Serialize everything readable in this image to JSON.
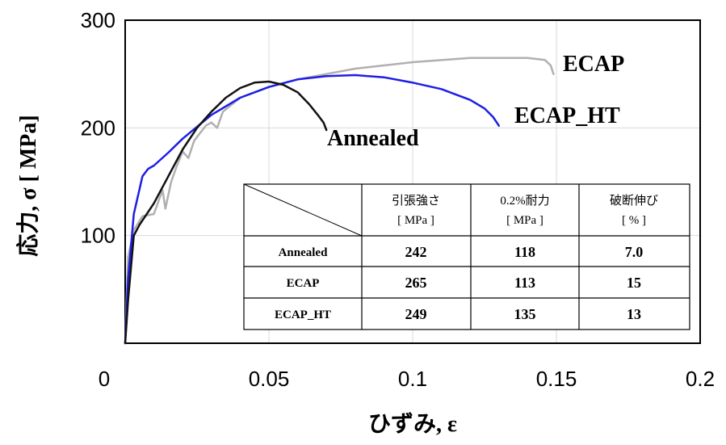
{
  "chart_data": {
    "type": "line",
    "title": "",
    "xlabel": "ひずみ, ε",
    "ylabel": "応力, σ [ MPa]",
    "xlim": [
      0,
      0.2
    ],
    "ylim": [
      0,
      300
    ],
    "x_ticks": [
      "0",
      "0.05",
      "0.1",
      "0.15",
      "0.2"
    ],
    "y_ticks": [
      "100",
      "200",
      "300"
    ],
    "grid": true,
    "series": [
      {
        "name": "ECAP",
        "color": "#b0b0b0",
        "points": [
          [
            0.0,
            0
          ],
          [
            0.001,
            80
          ],
          [
            0.003,
            105
          ],
          [
            0.006,
            118
          ],
          [
            0.01,
            120
          ],
          [
            0.012,
            135
          ],
          [
            0.013,
            142
          ],
          [
            0.014,
            125
          ],
          [
            0.016,
            150
          ],
          [
            0.018,
            165
          ],
          [
            0.02,
            178
          ],
          [
            0.022,
            172
          ],
          [
            0.024,
            188
          ],
          [
            0.026,
            195
          ],
          [
            0.028,
            202
          ],
          [
            0.03,
            205
          ],
          [
            0.032,
            200
          ],
          [
            0.034,
            215
          ],
          [
            0.04,
            228
          ],
          [
            0.05,
            238
          ],
          [
            0.06,
            245
          ],
          [
            0.08,
            255
          ],
          [
            0.1,
            261
          ],
          [
            0.12,
            265
          ],
          [
            0.14,
            265
          ],
          [
            0.146,
            263
          ],
          [
            0.148,
            258
          ],
          [
            0.149,
            250
          ]
        ]
      },
      {
        "name": "ECAP_HT",
        "color": "#1e1ee6",
        "points": [
          [
            0.0,
            0
          ],
          [
            0.001,
            60
          ],
          [
            0.003,
            120
          ],
          [
            0.006,
            155
          ],
          [
            0.008,
            162
          ],
          [
            0.01,
            165
          ],
          [
            0.015,
            177
          ],
          [
            0.02,
            190
          ],
          [
            0.03,
            212
          ],
          [
            0.04,
            228
          ],
          [
            0.05,
            238
          ],
          [
            0.06,
            245
          ],
          [
            0.07,
            248
          ],
          [
            0.08,
            249
          ],
          [
            0.09,
            247
          ],
          [
            0.1,
            242
          ],
          [
            0.11,
            236
          ],
          [
            0.12,
            226
          ],
          [
            0.125,
            218
          ],
          [
            0.128,
            210
          ],
          [
            0.13,
            202
          ]
        ]
      },
      {
        "name": "Annealed",
        "color": "#111111",
        "points": [
          [
            0.0,
            0
          ],
          [
            0.001,
            40
          ],
          [
            0.003,
            100
          ],
          [
            0.005,
            110
          ],
          [
            0.01,
            130
          ],
          [
            0.015,
            155
          ],
          [
            0.02,
            180
          ],
          [
            0.025,
            200
          ],
          [
            0.03,
            215
          ],
          [
            0.035,
            228
          ],
          [
            0.04,
            237
          ],
          [
            0.045,
            242
          ],
          [
            0.05,
            243
          ],
          [
            0.055,
            240
          ],
          [
            0.06,
            233
          ],
          [
            0.064,
            222
          ],
          [
            0.067,
            212
          ],
          [
            0.069,
            205
          ],
          [
            0.07,
            198
          ]
        ]
      }
    ],
    "series_labels": [
      "ECAP",
      "ECAP_HT",
      "Annealed"
    ],
    "table": {
      "headers": [
        [
          "引張強さ",
          "[ MPa ]"
        ],
        [
          "0.2%耐力",
          "[ MPa ]"
        ],
        [
          "破断伸び",
          "[ % ]"
        ]
      ],
      "rows": [
        {
          "label": "Annealed",
          "values": [
            "242",
            "118",
            "7.0"
          ]
        },
        {
          "label": "ECAP",
          "values": [
            "265",
            "113",
            "15"
          ]
        },
        {
          "label": "ECAP_HT",
          "values": [
            "249",
            "135",
            "13"
          ]
        }
      ]
    }
  }
}
